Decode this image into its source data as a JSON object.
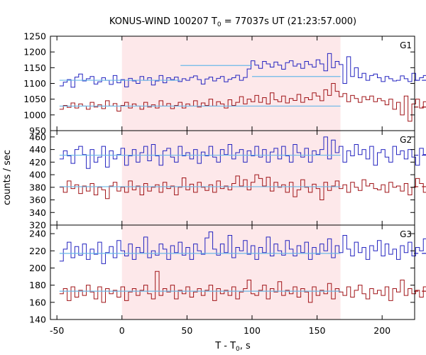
{
  "chart_data": {
    "type": "line",
    "title_main": "KONUS-WIND 100207 T",
    "title_sub": "0",
    "title_rest": " = 77037s UT (21:23:57.000)",
    "xlabel_main": "T - T",
    "xlabel_sub": "0",
    "xlabel_rest": ", s",
    "ylabel": "counts / sec",
    "xlim": [
      -55,
      225
    ],
    "xticks": [
      -50,
      0,
      50,
      100,
      150,
      200
    ],
    "xtick_labels": [
      "-50",
      "0",
      "50",
      "100",
      "150",
      "200"
    ],
    "highlight_interval": [
      0,
      168
    ],
    "colors": {
      "highlight": "#fde8ea",
      "lower": "#a01418",
      "upper": "#2424c0",
      "fit": "#6ab8e8"
    },
    "panels": [
      {
        "name": "G1",
        "ylim": [
          950,
          1250
        ],
        "yticks": [
          950,
          1000,
          1050,
          1100,
          1150,
          1200,
          1250
        ],
        "ytick_labels": [
          "950",
          "1000",
          "1050",
          "1100",
          "1150",
          "1200",
          "1250"
        ],
        "series": [
          {
            "role": "upper",
            "x_start": -48,
            "bin": 2.944,
            "values": [
              1092,
              1104,
              1112,
              1088,
              1120,
              1130,
              1108,
              1115,
              1122,
              1098,
              1105,
              1118,
              1110,
              1097,
              1125,
              1102,
              1112,
              1089,
              1116,
              1108,
              1100,
              1122,
              1110,
              1118,
              1095,
              1108,
              1125,
              1102,
              1118,
              1112,
              1120,
              1106,
              1115,
              1110,
              1119,
              1124,
              1112,
              1098,
              1114,
              1120,
              1108,
              1116,
              1122,
              1105,
              1113,
              1118,
              1126,
              1110,
              1119,
              1146,
              1172,
              1158,
              1148,
              1170,
              1162,
              1152,
              1168,
              1158,
              1145,
              1166,
              1172,
              1155,
              1162,
              1148,
              1170,
              1160,
              1152,
              1175,
              1162,
              1140,
              1195,
              1150,
              1170,
              1160,
              1100,
              1185,
              1122,
              1150,
              1118,
              1132,
              1110,
              1125,
              1130,
              1118,
              1106,
              1122,
              1115,
              1108,
              1110,
              1124,
              1115,
              1106,
              1132,
              1110,
              1118,
              1125,
              1112,
              1100,
              1118,
              1112,
              1120,
              1128,
              1108,
              1126,
              1112,
              1118,
              1122,
              1104,
              1115,
              1095
            ],
            "fit": [
              {
                "x0": -48,
                "x1": 45,
                "y": 1110
              },
              {
                "x0": 45,
                "x1": 100,
                "y": 1157
              },
              {
                "x0": 100,
                "x1": 168,
                "y": 1122
              }
            ],
            "level": 1110
          },
          {
            "role": "lower",
            "x_start": -48,
            "bin": 2.944,
            "values": [
              1018,
              1030,
              1024,
              1038,
              1022,
              1035,
              1028,
              1018,
              1040,
              1025,
              1032,
              1020,
              1045,
              1028,
              1036,
              1012,
              1030,
              1040,
              1022,
              1035,
              1028,
              1018,
              1040,
              1025,
              1032,
              1022,
              1045,
              1028,
              1036,
              1020,
              1030,
              1040,
              1022,
              1035,
              1028,
              1045,
              1025,
              1038,
              1030,
              1050,
              1028,
              1042,
              1035,
              1022,
              1048,
              1030,
              1040,
              1058,
              1035,
              1050,
              1042,
              1062,
              1040,
              1055,
              1035,
              1070,
              1048,
              1042,
              1060,
              1038,
              1052,
              1046,
              1065,
              1040,
              1055,
              1048,
              1070,
              1060,
              1045,
              1080,
              1062,
              1100,
              1075,
              1058,
              1068,
              1042,
              1062,
              1052,
              1040,
              1058,
              1048,
              1060,
              1042,
              1052,
              1045,
              1032,
              1050,
              1018,
              1040,
              1000,
              1060,
              980,
              1035,
              1050,
              1022,
              1042,
              1040,
              1030,
              1045,
              1025,
              1060,
              1032,
              1045,
              1038,
              1050,
              1035,
              1042,
              1028,
              1048,
              1055
            ],
            "fit": [
              {
                "x0": -48,
                "x1": 168,
                "y": 1028
              }
            ],
            "level": 1025
          }
        ]
      },
      {
        "name": "G2",
        "ylim": [
          320,
          470
        ],
        "yticks": [
          320,
          340,
          360,
          380,
          400,
          420,
          440,
          460
        ],
        "ytick_labels": [
          "320",
          "340",
          "360",
          "380",
          "400",
          "420",
          "440",
          "460"
        ],
        "series": [
          {
            "role": "upper",
            "x_start": -48,
            "bin": 2.944,
            "values": [
              425,
              438,
              430,
              418,
              440,
              445,
              432,
              410,
              440,
              420,
              428,
              445,
              412,
              438,
              425,
              432,
              442,
              415,
              430,
              440,
              420,
              435,
              445,
              422,
              448,
              430,
              415,
              438,
              442,
              428,
              420,
              445,
              430,
              435,
              425,
              440,
              418,
              436,
              430,
              445,
              428,
              420,
              440,
              432,
              448,
              425,
              435,
              440,
              420,
              438,
              430,
              445,
              428,
              440,
              420,
              436,
              442,
              425,
              445,
              430,
              420,
              448,
              435,
              428,
              442,
              420,
              438,
              432,
              440,
              460,
              425,
              455,
              435,
              445,
              420,
              438,
              430,
              448,
              432,
              440,
              425,
              445,
              415,
              435,
              440,
              428,
              420,
              445,
              432,
              438,
              425,
              440,
              428,
              415,
              442,
              432,
              436,
              428,
              440,
              420,
              435,
              432,
              448,
              422,
              440,
              430,
              436,
              425,
              438,
              428
            ],
            "fit": [
              {
                "x0": -48,
                "x1": 168,
                "y": 431
              }
            ],
            "level": 431
          },
          {
            "role": "lower",
            "x_start": -48,
            "bin": 2.944,
            "values": [
              380,
              372,
              390,
              378,
              384,
              370,
              382,
              374,
              386,
              368,
              380,
              376,
              362,
              382,
              388,
              374,
              380,
              372,
              390,
              376,
              382,
              368,
              386,
              374,
              380,
              384,
              372,
              388,
              378,
              382,
              368,
              380,
              395,
              376,
              385,
              372,
              388,
              380,
              375,
              384,
              372,
              390,
              378,
              382,
              376,
              386,
              398,
              382,
              392,
              376,
              388,
              400,
              394,
              382,
              396,
              374,
              388,
              380,
              384,
              372,
              388,
              365,
              376,
              392,
              380,
              372,
              385,
              378,
              360,
              388,
              375,
              382,
              390,
              378,
              384,
              372,
              388,
              380,
              375,
              392,
              382,
              386,
              378,
              376,
              384,
              372,
              388,
              380,
              382,
              374,
              386,
              368,
              380,
              394,
              386,
              372,
              380,
              384,
              388,
              376,
              380,
              366,
              388,
              350,
              382,
              390,
              376,
              385,
              378,
              388
            ],
            "fit": [
              {
                "x0": -48,
                "x1": 168,
                "y": 381
              }
            ],
            "level": 381
          }
        ]
      },
      {
        "name": "G3",
        "ylim": [
          140,
          250
        ],
        "yticks": [
          140,
          160,
          180,
          200,
          220,
          240
        ],
        "ytick_labels": [
          "140",
          "160",
          "180",
          "200",
          "220",
          "240"
        ],
        "series": [
          {
            "role": "upper",
            "x_start": -48,
            "bin": 2.944,
            "values": [
              208,
              222,
              230,
              212,
              225,
              215,
              228,
              210,
              222,
              216,
              230,
              205,
              218,
              225,
              212,
              232,
              220,
              214,
              228,
              210,
              224,
              218,
              236,
              212,
              220,
              215,
              228,
              222,
              210,
              226,
              218,
              230,
              215,
              224,
              210,
              228,
              220,
              216,
              235,
              242,
              222,
              215,
              228,
              218,
              238,
              212,
              224,
              220,
              232,
              216,
              226,
              210,
              224,
              218,
              236,
              214,
              228,
              220,
              215,
              232,
              222,
              214,
              226,
              218,
              230,
              210,
              224,
              216,
              228,
              220,
              234,
              212,
              226,
              218,
              238,
              222,
              214,
              230,
              218,
              224,
              210,
              226,
              220,
              232,
              214,
              228,
              216,
              222,
              210,
              226,
              218,
              230,
              214,
              224,
              220,
              234,
              212,
              226,
              218,
              228,
              214,
              224,
              216,
              222,
              218,
              226,
              210,
              220,
              214,
              216
            ],
            "fit": [
              {
                "x0": -48,
                "x1": 168,
                "y": 217
              }
            ],
            "level": 217
          },
          {
            "role": "lower",
            "x_start": -48,
            "bin": 2.944,
            "values": [
              170,
              176,
              162,
              178,
              166,
              174,
              168,
              180,
              172,
              164,
              178,
              160,
              176,
              170,
              174,
              166,
              178,
              162,
              172,
              176,
              168,
              174,
              180,
              170,
              164,
              196,
              168,
              176,
              172,
              180,
              164,
              174,
              170,
              178,
              166,
              172,
              176,
              168,
              174,
              180,
              162,
              176,
              170,
              174,
              168,
              178,
              164,
              172,
              176,
              186,
              170,
              168,
              174,
              180,
              164,
              176,
              172,
              184,
              168,
              174,
              170,
              178,
              166,
              176,
              172,
              160,
              178,
              168,
              174,
              170,
              182,
              164,
              176,
              172,
              168,
              178,
              166,
              174,
              180,
              170,
              164,
              176,
              170,
              174,
              168,
              178,
              162,
              176,
              172,
              186,
              168,
              176,
              170,
              174,
              166,
              178,
              172,
              168,
              176,
              164,
              172,
              180,
              170,
              174,
              168,
              178,
              166,
              176,
              170,
              176
            ],
            "fit": [
              {
                "x0": -48,
                "x1": 168,
                "y": 173
              }
            ],
            "level": 173
          }
        ]
      }
    ]
  }
}
